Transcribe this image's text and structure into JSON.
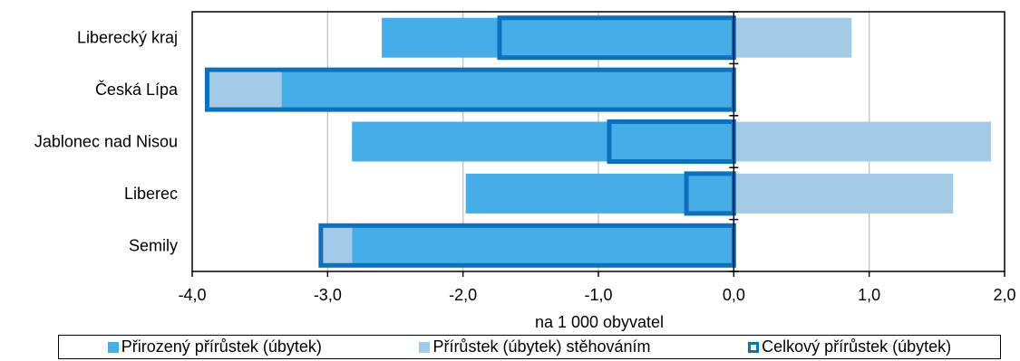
{
  "chart_data": {
    "type": "bar",
    "orientation": "horizontal",
    "categories": [
      "Liberecký kraj",
      "Česká Lípa",
      "Jablonec nad Nisou",
      "Liberec",
      "Semily"
    ],
    "series": [
      {
        "name": "Přirozený přírůstek (úbytek)",
        "values": [
          -2.6,
          -3.34,
          -2.82,
          -1.98,
          -2.82
        ],
        "color": "#45aee8",
        "style": "bar"
      },
      {
        "name": "Přírůstek (úbytek) stěhováním",
        "values": [
          0.87,
          -0.55,
          1.9,
          1.62,
          -0.23
        ],
        "color": "#a3cbe8",
        "style": "bar"
      },
      {
        "name": "Celkový přírůstek (úbytek)",
        "values": [
          -1.73,
          -3.89,
          -0.92,
          -0.35,
          -3.05
        ],
        "color": "#0a70c0",
        "style": "outline"
      }
    ],
    "xlabel": "na 1 000 obyvatel",
    "xlim": [
      -4.0,
      2.0
    ],
    "xticks": [
      -4.0,
      -3.0,
      -2.0,
      -1.0,
      0.0,
      1.0,
      2.0
    ],
    "xtick_labels": [
      "-4,0",
      "-3,0",
      "-2,0",
      "-1,0",
      "0,0",
      "1,0",
      "2,0"
    ],
    "grid": "vertical",
    "legend_position": "bottom"
  }
}
